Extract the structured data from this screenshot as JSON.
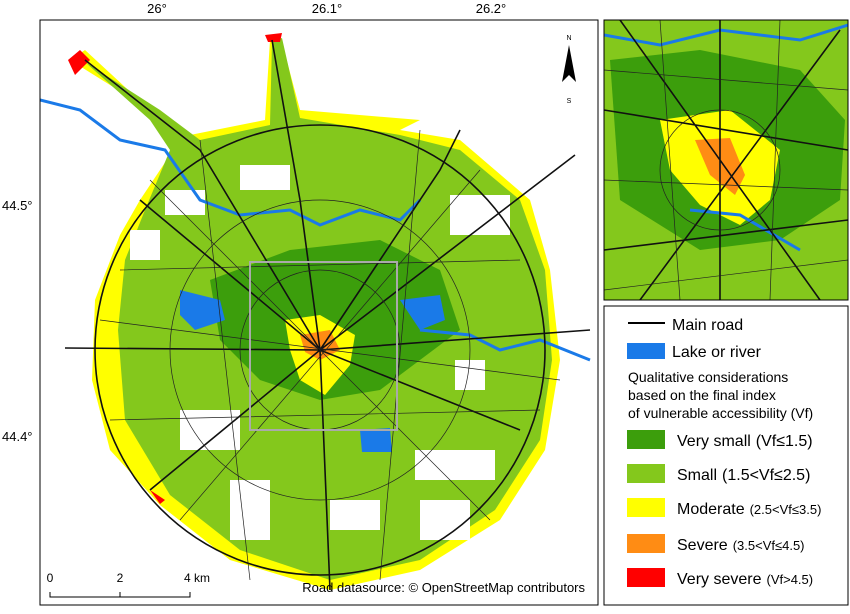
{
  "map": {
    "lon_labels": [
      "26°",
      "26.1°",
      "26.2°"
    ],
    "lat_labels": [
      "44.5°",
      "44.4°"
    ],
    "north": "N",
    "south": "S",
    "scale_labels": [
      "0",
      "2",
      "4 km"
    ],
    "source": "Road datasource: © OpenStreetMap contributors"
  },
  "legend": {
    "main_road": "Main road",
    "lake": "Lake or river",
    "heading": [
      "Qualitative considerations",
      "based on the final index",
      "of vulnerable accessibility (Vf)"
    ],
    "classes": [
      {
        "label": "Very small",
        "range": "(Vf≤1.5)",
        "color": "#3c9e0c"
      },
      {
        "label": "Small",
        "range": "(1.5<Vf≤2.5)",
        "color": "#84c81c"
      },
      {
        "label": "Moderate",
        "range": "(2.5<Vf≤3.5)",
        "color": "#ffff00"
      },
      {
        "label": "Severe",
        "range": "(3.5<Vf≤4.5)",
        "color": "#ff8c14"
      },
      {
        "label": "Very severe",
        "range": "(Vf>4.5)",
        "color": "#ff0000"
      }
    ]
  }
}
